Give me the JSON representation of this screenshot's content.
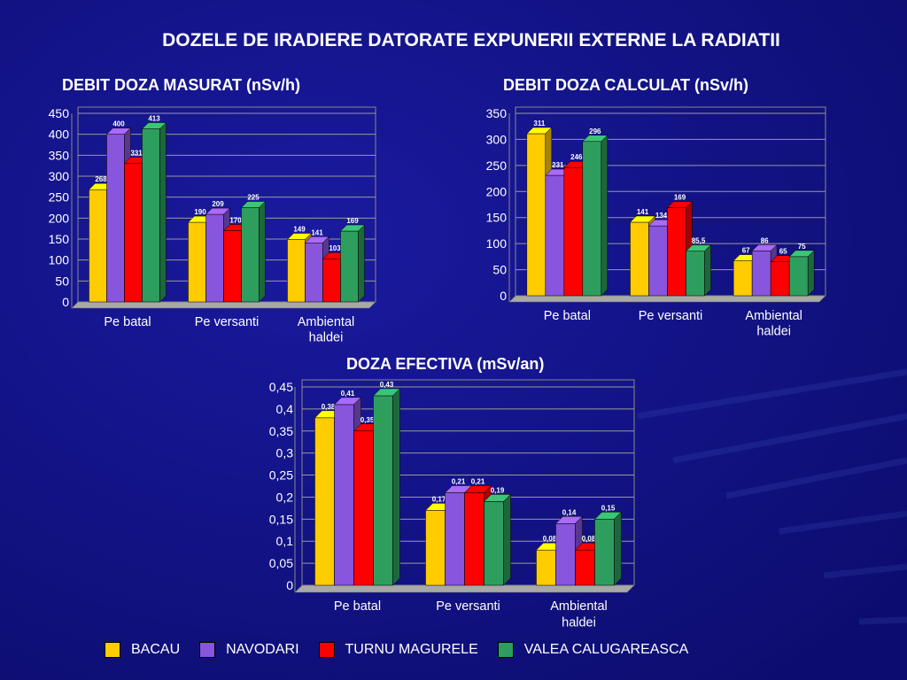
{
  "slide": {
    "title": "DOZELE DE IRADIERE DATORATE EXPUNERII EXTERNE LA RADIATII"
  },
  "legend": [
    {
      "name": "BACAU",
      "color": "#FFCC00"
    },
    {
      "name": "NAVODARI",
      "color": "#8855DD"
    },
    {
      "name": "TURNU MAGURELE",
      "color": "#FF0000"
    },
    {
      "name": "VALEA CALUGAREASCA",
      "color": "#2E9E5E"
    }
  ],
  "chart_data": [
    {
      "type": "bar",
      "title": "DEBIT DOZA MASURAT (nSv/h)",
      "categories": [
        "Pe batal",
        "Pe versanti",
        "Ambiental haldei"
      ],
      "series": [
        {
          "name": "BACAU",
          "values": [
            268,
            190,
            149
          ],
          "labels": [
            "268",
            "190",
            "149"
          ]
        },
        {
          "name": "NAVODARI",
          "values": [
            400,
            209,
            141
          ],
          "labels": [
            "400",
            "209",
            "141"
          ]
        },
        {
          "name": "TURNU MAGURELE",
          "values": [
            331,
            170,
            103
          ],
          "labels": [
            "331",
            "170",
            "103"
          ]
        },
        {
          "name": "VALEA CALUGAREASCA",
          "values": [
            413,
            225,
            169
          ],
          "labels": [
            "413",
            "225",
            "169"
          ]
        }
      ],
      "ylim": [
        0,
        450
      ],
      "yticks": [
        "0",
        "50",
        "100",
        "150",
        "200",
        "250",
        "300",
        "350",
        "400",
        "450"
      ],
      "xlabel": "",
      "ylabel": "",
      "grid": true
    },
    {
      "type": "bar",
      "title": "DEBIT DOZA CALCULAT (nSv/h)",
      "categories": [
        "Pe batal",
        "Pe versanti",
        "Ambiental haldei"
      ],
      "series": [
        {
          "name": "BACAU",
          "values": [
            311,
            141,
            67
          ],
          "labels": [
            "311",
            "141",
            "67"
          ]
        },
        {
          "name": "NAVODARI",
          "values": [
            231,
            134,
            86
          ],
          "labels": [
            "231",
            "134",
            "86"
          ]
        },
        {
          "name": "TURNU MAGURELE",
          "values": [
            246,
            169,
            65
          ],
          "labels": [
            "246",
            "169",
            "65"
          ]
        },
        {
          "name": "VALEA CALUGAREASCA",
          "values": [
            296,
            85.5,
            75
          ],
          "labels": [
            "296",
            "85,5",
            "75"
          ]
        }
      ],
      "ylim": [
        0,
        350
      ],
      "yticks": [
        "0",
        "50",
        "100",
        "150",
        "200",
        "250",
        "300",
        "350"
      ],
      "xlabel": "",
      "ylabel": "",
      "grid": true
    },
    {
      "type": "bar",
      "title": "DOZA EFECTIVA (mSv/an)",
      "categories": [
        "Pe batal",
        "Pe versanti",
        "Ambiental haldei"
      ],
      "series": [
        {
          "name": "BACAU",
          "values": [
            0.38,
            0.17,
            0.08
          ],
          "labels": [
            "0,38",
            "0,17",
            "0,08"
          ]
        },
        {
          "name": "NAVODARI",
          "values": [
            0.41,
            0.21,
            0.14
          ],
          "labels": [
            "0,41",
            "0,21",
            "0,14"
          ]
        },
        {
          "name": "TURNU MAGURELE",
          "values": [
            0.35,
            0.21,
            0.08
          ],
          "labels": [
            "0,35",
            "0,21",
            "0,08"
          ]
        },
        {
          "name": "VALEA CALUGAREASCA",
          "values": [
            0.43,
            0.19,
            0.15
          ],
          "labels": [
            "0,43",
            "0,19",
            "0,15"
          ]
        }
      ],
      "ylim": [
        0,
        0.45
      ],
      "yticks": [
        "0",
        "0,05",
        "0,1",
        "0,15",
        "0,2",
        "0,25",
        "0,3",
        "0,35",
        "0,4",
        "0,45"
      ],
      "xlabel": "",
      "ylabel": "",
      "grid": true
    }
  ]
}
